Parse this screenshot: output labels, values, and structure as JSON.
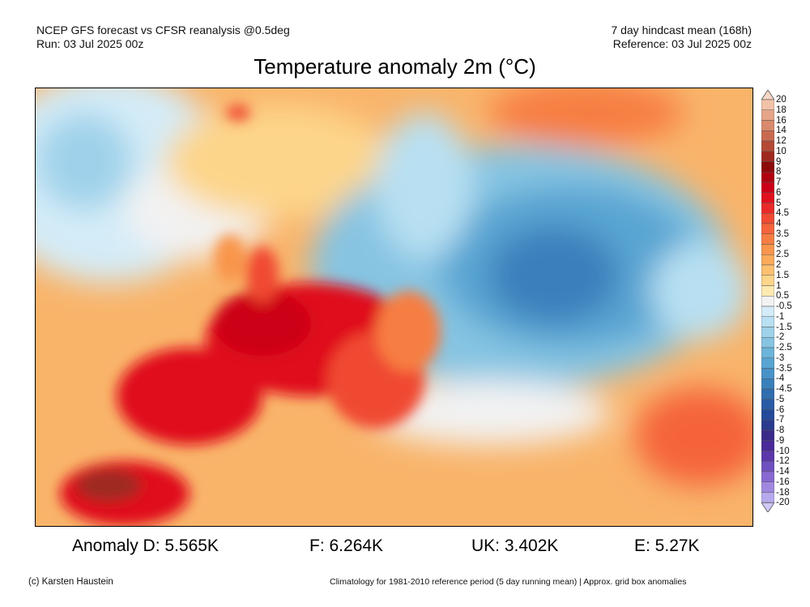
{
  "header": {
    "left_line1": "NCEP GFS forecast vs CFSR reanalysis @0.5deg",
    "left_line2": "Run: 03 Jul 2025 00z",
    "right_line1": "7 day hindcast mean (168h)",
    "right_line2": "Reference: 03 Jul 2025 00z"
  },
  "title": "Temperature anomaly 2m (°C)",
  "colorbar": {
    "labels": [
      "20",
      "18",
      "16",
      "14",
      "12",
      "10",
      "9",
      "8",
      "7",
      "6",
      "5",
      "4.5",
      "4",
      "3.5",
      "3",
      "2.5",
      "2",
      "1.5",
      "1",
      "0.5",
      "-0.5",
      "-1",
      "-1.5",
      "-2",
      "-2.5",
      "-3",
      "-3.5",
      "-4",
      "-4.5",
      "-5",
      "-6",
      "-7",
      "-8",
      "-9",
      "-10",
      "-12",
      "-14",
      "-16",
      "-18",
      "-20"
    ],
    "top_extension_color": "#f6d6c6",
    "bottom_extension_color": "#d0c8f8",
    "colors": [
      "#f2c2a8",
      "#e6a488",
      "#d98a6c",
      "#c96a50",
      "#b44a36",
      "#9e2a20",
      "#8c0a0a",
      "#b00010",
      "#cc0018",
      "#e0101f",
      "#ea2a2a",
      "#f04a32",
      "#f5643a",
      "#f77e42",
      "#f9954c",
      "#fbaa5a",
      "#fcc070",
      "#fdd58a",
      "#feeab0",
      "#f2f2f2",
      "#d4ecf8",
      "#b8e0f2",
      "#9fd2ea",
      "#86c4e2",
      "#6cb4da",
      "#58a4d2",
      "#4892c8",
      "#3a80bc",
      "#306eb0",
      "#2a5ca6",
      "#254a9a",
      "#2a3a8e",
      "#3a2a8a",
      "#4a2a98",
      "#5a38aa",
      "#7050c0",
      "#8868d2",
      "#a088e0",
      "#b8a8ee"
    ]
  },
  "stats": {
    "germany": "Anomaly D: 5.565K",
    "france": "F: 6.264K",
    "uk": "UK: 3.402K",
    "spain": "E: 5.27K"
  },
  "footer": {
    "credit": "(c) Karsten Haustein",
    "note": "Climatology for 1981-2010 reference period (5 day running mean) | Approx. grid box anomalies"
  }
}
